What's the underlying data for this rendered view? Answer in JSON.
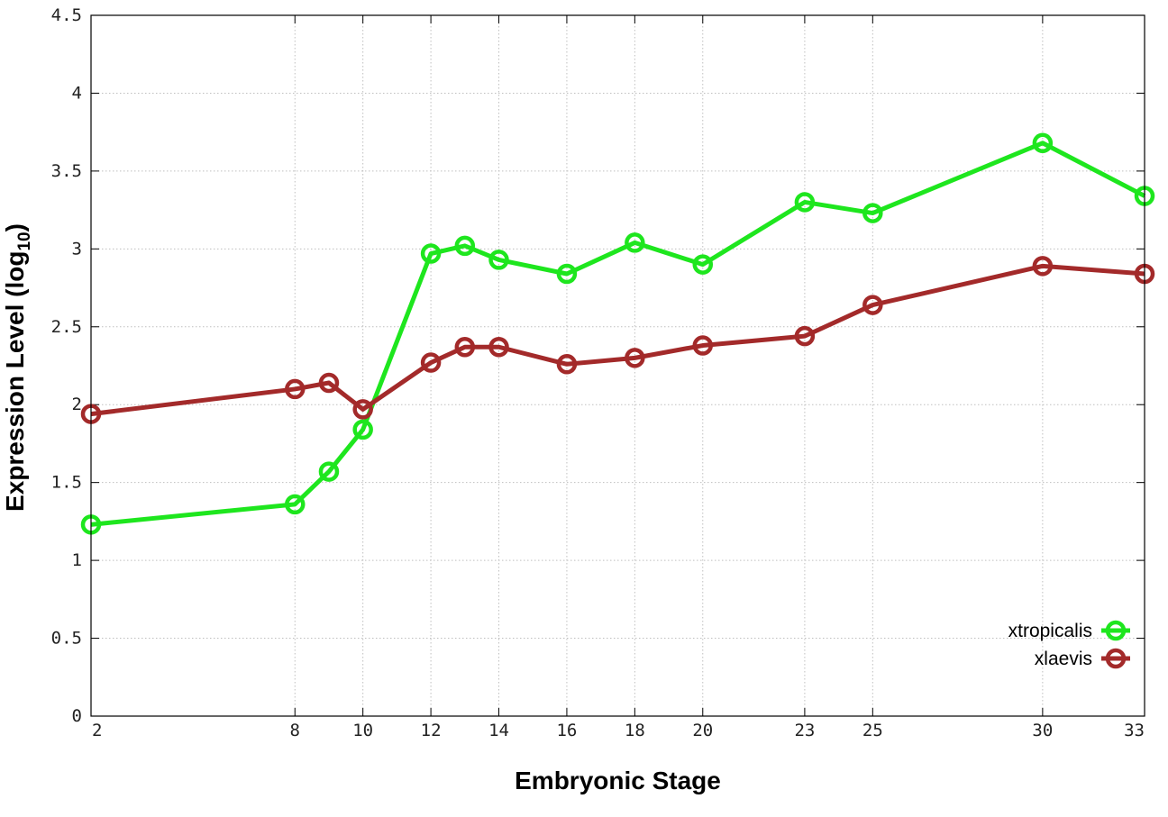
{
  "chart_data": {
    "type": "line",
    "title": "",
    "xlabel": "Embryonic Stage",
    "ylabel_main": "Expression Level (log",
    "ylabel_sub": "10",
    "ylabel_close": ")",
    "x_ticks": [
      2,
      8,
      10,
      12,
      14,
      16,
      18,
      20,
      23,
      25,
      30,
      33
    ],
    "y_ticks": [
      "0",
      "0.5",
      "1",
      "1.5",
      "2",
      "2.5",
      "3",
      "3.5",
      "4",
      "4.5"
    ],
    "xlim": [
      2,
      33
    ],
    "ylim": [
      0,
      4.5
    ],
    "x": [
      2,
      8,
      9,
      10,
      12,
      13,
      14,
      16,
      18,
      20,
      23,
      25,
      30,
      33
    ],
    "grid": true,
    "legend_position": "bottom-right",
    "series": [
      {
        "name": "xtropicalis",
        "color": "#1ee61e",
        "values": [
          1.23,
          1.36,
          1.57,
          1.84,
          2.97,
          3.02,
          2.93,
          2.84,
          3.04,
          2.9,
          3.3,
          3.23,
          3.68,
          3.34
        ]
      },
      {
        "name": "xlaevis",
        "color": "#a32a2a",
        "values": [
          1.94,
          2.1,
          2.14,
          1.97,
          2.27,
          2.37,
          2.37,
          2.26,
          2.3,
          2.38,
          2.44,
          2.64,
          2.89,
          2.84
        ]
      }
    ]
  }
}
